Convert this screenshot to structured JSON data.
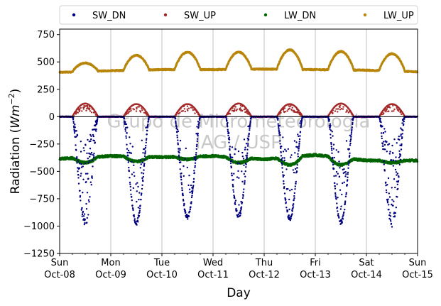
{
  "chart_data": {
    "type": "scatter",
    "title": "",
    "xlabel": "Day",
    "ylabel_main": "Radiation (",
    "ylabel_unit": "Wm",
    "ylabel_exp": "−2",
    "ylabel_close": ")",
    "ylim": [
      -1250,
      800
    ],
    "xlim": [
      0,
      7
    ],
    "yticks": [
      800,
      750,
      500,
      250,
      0,
      -250,
      -500,
      -750,
      -1000,
      -1250
    ],
    "ytick_labels": [
      "",
      "750",
      "500",
      "250",
      "0",
      "−250",
      "−500",
      "−750",
      "−1000",
      "−1250"
    ],
    "xticks": [
      {
        "x": 0,
        "day": "Sun",
        "date": "Oct-08"
      },
      {
        "x": 1,
        "day": "Mon",
        "date": "Oct-09"
      },
      {
        "x": 2,
        "day": "Tue",
        "date": "Oct-10"
      },
      {
        "x": 3,
        "day": "Wed",
        "date": "Oct-11"
      },
      {
        "x": 4,
        "day": "Thu",
        "date": "Oct-12"
      },
      {
        "x": 5,
        "day": "Fri",
        "date": "Oct-13"
      },
      {
        "x": 6,
        "day": "Sat",
        "date": "Oct-14"
      },
      {
        "x": 7,
        "day": "Sun",
        "date": "Oct-15"
      }
    ],
    "grid": "x-only",
    "legend_position": "top-outside",
    "watermark_lines": [
      "Grupo de Micrometeorologia",
      "IAG / USP"
    ],
    "series": [
      {
        "name": "SW_DN",
        "color": "#00007f",
        "daily_min": [
          -1020,
          -990,
          -940,
          -930,
          -950,
          -990,
          -1010
        ]
      },
      {
        "name": "SW_UP",
        "color": "#a52a2a",
        "daily_max": [
          120,
          115,
          115,
          120,
          115,
          120,
          115
        ]
      },
      {
        "name": "LW_DN",
        "color": "#006400",
        "daily_night": [
          -385,
          -360,
          -370,
          -360,
          -390,
          -350,
          -400
        ],
        "daily_day": [
          -420,
          -410,
          -390,
          -420,
          -440,
          -440,
          -420
        ]
      },
      {
        "name": "LW_UP",
        "color": "#b8860b",
        "daily_night": [
          405,
          420,
          430,
          430,
          435,
          430,
          425,
          410
        ],
        "daily_peak": [
          490,
          560,
          590,
          590,
          610,
          595,
          575
        ]
      }
    ]
  }
}
